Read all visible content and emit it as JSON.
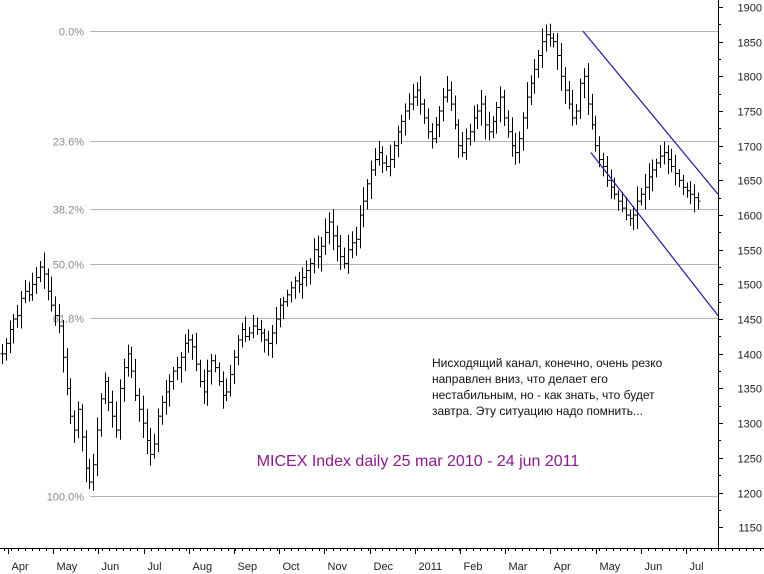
{
  "chart_data": {
    "type": "ohlc-bar",
    "title": "MICEX Index daily 25 mar 2010 - 24 jun 2011",
    "title_color": "#8a1a8a",
    "series_color": "#000000",
    "ylim": [
      1120,
      1910
    ],
    "yticks": [
      1150,
      1200,
      1250,
      1300,
      1350,
      1400,
      1450,
      1500,
      1550,
      1600,
      1650,
      1700,
      1750,
      1800,
      1850,
      1900
    ],
    "y_axis_position": "right",
    "month_labels": [
      "Apr",
      "May",
      "Jun",
      "Jul",
      "Aug",
      "Sep",
      "Oct",
      "Nov",
      "Dec",
      "2011",
      "Feb",
      "Mar",
      "Apr",
      "May",
      "Jun",
      "Jul"
    ],
    "fibonacci": {
      "color": "#b4b4b4",
      "high": 1865,
      "low": 1195,
      "levels": [
        {
          "label": "0.0%",
          "value": 1865
        },
        {
          "label": "23.6%",
          "value": 1707
        },
        {
          "label": "38.2%",
          "value": 1609
        },
        {
          "label": "50.0%",
          "value": 1530
        },
        {
          "label": "61.8%",
          "value": 1451
        },
        {
          "label": "100.0%",
          "value": 1195
        }
      ]
    },
    "channel": {
      "color": "#1a1aa8",
      "upper": {
        "from": {
          "t": 0.812,
          "v": 1865
        },
        "to": {
          "t": 1.0,
          "v": 1630
        }
      },
      "lower": {
        "from": {
          "t": 0.823,
          "v": 1690
        },
        "to": {
          "t": 1.0,
          "v": 1455
        }
      }
    },
    "closes": [
      1400,
      1415,
      1435,
      1450,
      1455,
      1480,
      1490,
      1485,
      1500,
      1510,
      1525,
      1515,
      1490,
      1470,
      1455,
      1440,
      1395,
      1350,
      1310,
      1290,
      1320,
      1280,
      1235,
      1215,
      1240,
      1290,
      1335,
      1360,
      1330,
      1310,
      1290,
      1350,
      1380,
      1400,
      1375,
      1340,
      1320,
      1300,
      1275,
      1255,
      1270,
      1310,
      1330,
      1345,
      1360,
      1375,
      1380,
      1395,
      1415,
      1420,
      1410,
      1385,
      1360,
      1345,
      1375,
      1390,
      1380,
      1360,
      1340,
      1345,
      1370,
      1395,
      1420,
      1435,
      1425,
      1430,
      1440,
      1435,
      1430,
      1420,
      1415,
      1430,
      1450,
      1470,
      1475,
      1485,
      1495,
      1505,
      1500,
      1510,
      1520,
      1530,
      1550,
      1540,
      1555,
      1575,
      1590,
      1570,
      1555,
      1540,
      1530,
      1550,
      1560,
      1565,
      1600,
      1620,
      1645,
      1665,
      1680,
      1690,
      1675,
      1670,
      1680,
      1700,
      1720,
      1735,
      1750,
      1760,
      1770,
      1780,
      1760,
      1740,
      1720,
      1710,
      1730,
      1750,
      1770,
      1780,
      1760,
      1730,
      1700,
      1690,
      1710,
      1720,
      1740,
      1750,
      1760,
      1730,
      1720,
      1735,
      1755,
      1770,
      1740,
      1720,
      1700,
      1690,
      1710,
      1740,
      1770,
      1790,
      1810,
      1830,
      1850,
      1860,
      1855,
      1850,
      1830,
      1800,
      1780,
      1760,
      1740,
      1750,
      1790,
      1800,
      1760,
      1730,
      1700,
      1680,
      1670,
      1650,
      1640,
      1630,
      1620,
      1610,
      1600,
      1595,
      1600,
      1620,
      1630,
      1640,
      1655,
      1665,
      1675,
      1685,
      1690,
      1680,
      1670,
      1660,
      1650,
      1640,
      1635,
      1630,
      1625,
      1620
    ]
  },
  "annotation": {
    "lines": [
      "Нисходящий канал, конечно, очень резко",
      "направлен вниз, что делает его",
      "нестабильным, но - как знать, что будет",
      "завтра. Эту ситуацию надо помнить..."
    ]
  }
}
